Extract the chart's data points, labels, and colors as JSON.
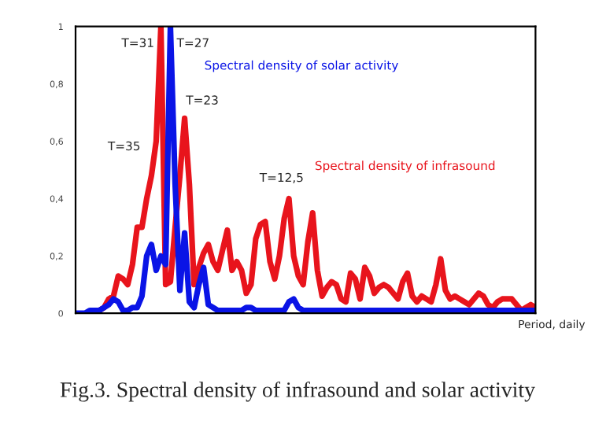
{
  "chart_data": {
    "type": "line",
    "xlabel": "Period, daily",
    "categories": [
      null,
      null,
      null,
      null,
      null,
      null,
      null,
      null,
      null,
      null,
      null,
      null,
      null,
      null,
      null,
      null,
      null,
      null,
      null,
      null,
      null,
      null,
      null,
      null,
      null,
      null,
      null,
      null,
      null,
      null,
      null,
      null,
      null,
      null,
      null,
      null,
      null,
      null,
      null,
      null,
      null,
      null,
      null,
      null,
      null,
      null,
      null,
      null,
      null,
      null,
      null,
      null,
      null,
      null,
      null,
      null,
      null,
      null,
      null,
      null,
      null,
      null,
      null,
      null,
      null,
      null,
      null,
      null,
      null,
      null,
      null,
      null,
      null,
      null,
      null,
      null,
      null,
      null,
      null,
      null,
      null,
      null,
      null,
      null,
      null,
      null,
      null,
      null,
      null,
      null,
      null,
      null,
      null,
      null,
      null,
      null,
      null,
      null
    ],
    "ylim": [
      0,
      1
    ],
    "yticks": [
      0,
      {
        "value": 0.2,
        "label": "0,2"
      },
      {
        "value": 0.4,
        "label": "0,4"
      },
      {
        "value": 0.6,
        "label": "0,6"
      },
      {
        "value": 0.8,
        "label": "0,8"
      },
      1
    ],
    "marker": "none",
    "line_style": "solid",
    "series": [
      {
        "name": "Spectral density of infrasound",
        "color": "#e8141c",
        "values": [
          null,
          null,
          null,
          null,
          null,
          0.01,
          0.02,
          0.05,
          0.06,
          0.13,
          0.12,
          0.1,
          0.17,
          0.3,
          0.3,
          0.4,
          0.48,
          0.6,
          1.0,
          0.1,
          0.11,
          0.3,
          0.48,
          0.68,
          0.45,
          0.1,
          0.16,
          0.21,
          0.24,
          0.18,
          0.15,
          0.22,
          0.29,
          0.15,
          0.18,
          0.15,
          0.07,
          0.1,
          0.26,
          0.31,
          0.32,
          0.18,
          0.12,
          0.2,
          0.33,
          0.4,
          0.2,
          0.13,
          0.1,
          0.25,
          0.35,
          0.15,
          0.06,
          0.09,
          0.11,
          0.1,
          0.05,
          0.04,
          0.14,
          0.12,
          0.05,
          0.16,
          0.13,
          0.07,
          0.09,
          0.1,
          0.09,
          0.07,
          0.05,
          0.11,
          0.14,
          0.06,
          0.04,
          0.06,
          0.05,
          0.04,
          0.1,
          0.19,
          0.08,
          0.05,
          0.06,
          0.05,
          0.04,
          0.03,
          0.05,
          0.07,
          0.06,
          0.03,
          0.02,
          0.04,
          0.05,
          0.05,
          0.05,
          0.03,
          0.01,
          0.02,
          0.03,
          0.02
        ]
      },
      {
        "name": "Spectral density of solar activity",
        "color": "#0a14e6",
        "values": [
          0,
          0,
          0,
          0.01,
          0.01,
          0.01,
          0.02,
          0.03,
          0.05,
          0.04,
          0.01,
          0.01,
          0.02,
          0.02,
          0.06,
          0.2,
          0.24,
          0.15,
          0.2,
          0.17,
          1.0,
          0.45,
          0.08,
          0.28,
          0.04,
          0.02,
          0.1,
          0.16,
          0.03,
          0.02,
          0.01,
          0.01,
          0.01,
          0.01,
          0.01,
          0.01,
          0.02,
          0.02,
          0.01,
          0.01,
          0.01,
          0.01,
          0.01,
          0.01,
          0.01,
          0.04,
          0.05,
          0.02,
          0.01,
          0.01,
          0.01,
          0.01,
          0.01,
          0.01,
          0.01,
          0.01,
          0.01,
          0.01,
          0.01,
          0.01,
          0.01,
          0.01,
          0.01,
          0.01,
          0.01,
          0.01,
          0.01,
          0.01,
          0.01,
          0.01,
          0.01,
          0.01,
          0.01,
          0.01,
          0.01,
          0.01,
          0.01,
          0.01,
          0.01,
          0.01,
          0.01,
          0.01,
          0.01,
          0.01,
          0.01,
          0.01,
          0.01,
          0.01,
          0.01,
          0.01,
          0.01,
          0.01,
          0.01,
          0.01,
          0.01,
          0.01,
          0.01,
          0.01
        ]
      }
    ],
    "annotations": [
      "T=31",
      "T=27",
      "T=23",
      "T=35",
      "T=12,5",
      "Fig.3. Spectral density of infrasound and solar activity"
    ]
  }
}
